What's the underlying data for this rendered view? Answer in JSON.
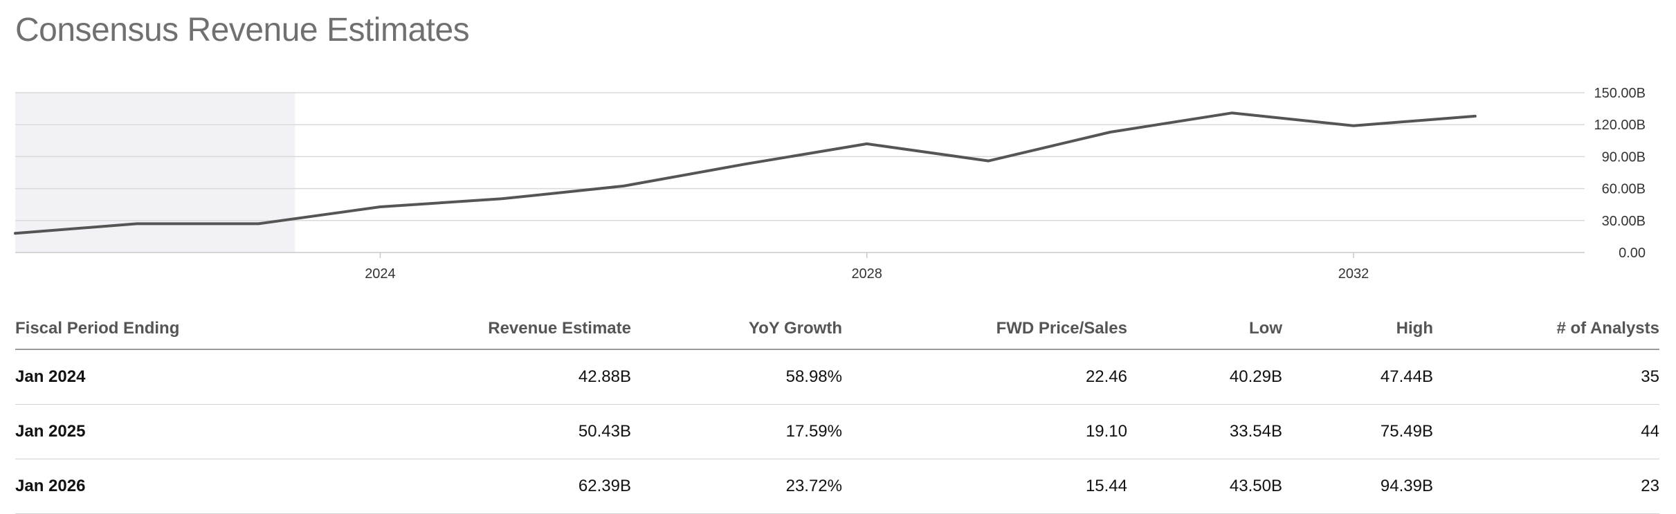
{
  "title": "Consensus Revenue Estimates",
  "colors": {
    "line": "#555555",
    "grid": "#d9d9d9",
    "shade": "#f2f2f6",
    "title": "#707070"
  },
  "chart_data": {
    "type": "line",
    "title": "",
    "xlabel": "",
    "ylabel": "",
    "x": [
      2021,
      2022,
      2023,
      2024,
      2025,
      2026,
      2027,
      2028,
      2029,
      2030,
      2031,
      2032,
      2033
    ],
    "x_ticks": [
      "2024",
      "2028",
      "2032"
    ],
    "y_ticks": [
      "0.00",
      "30.00B",
      "60.00B",
      "90.00B",
      "120.00B",
      "150.00B"
    ],
    "ylim": [
      0,
      150
    ],
    "y_unit": "B",
    "series": [
      {
        "values": [
          18,
          27,
          27,
          42.88,
          50.43,
          62.39,
          83,
          102,
          86,
          113,
          131,
          119,
          128
        ]
      }
    ],
    "shaded_region": {
      "from": 2021,
      "to": 2023.3
    },
    "grid": true,
    "y_axis_position": "right"
  },
  "table": {
    "columns": [
      "Fiscal Period Ending",
      "Revenue Estimate",
      "YoY Growth",
      "FWD Price/Sales",
      "Low",
      "High",
      "# of Analysts"
    ],
    "rows": [
      [
        "Jan 2024",
        "42.88B",
        "58.98%",
        "22.46",
        "40.29B",
        "47.44B",
        "35"
      ],
      [
        "Jan 2025",
        "50.43B",
        "17.59%",
        "19.10",
        "33.54B",
        "75.49B",
        "44"
      ],
      [
        "Jan 2026",
        "62.39B",
        "23.72%",
        "15.44",
        "43.50B",
        "94.39B",
        "23"
      ]
    ]
  }
}
